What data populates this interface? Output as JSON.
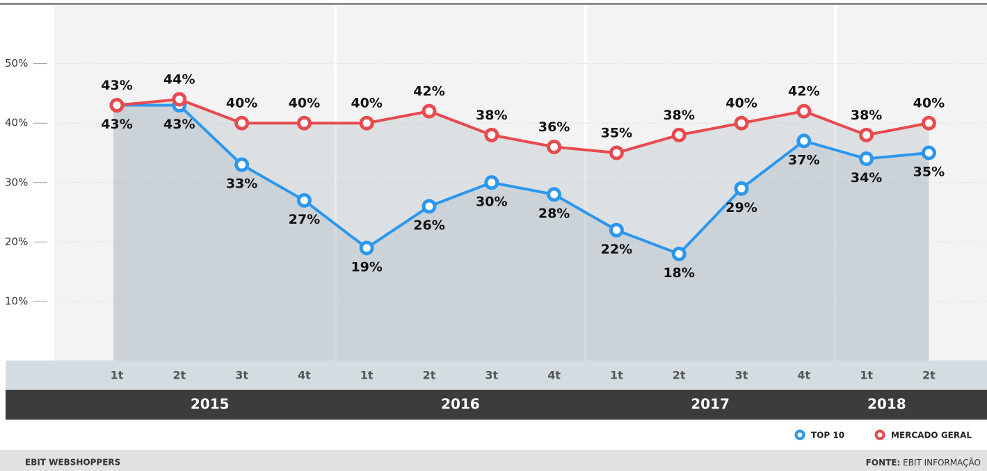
{
  "chart_data": {
    "type": "line",
    "groups": [
      {
        "name": "2015",
        "categories": [
          "1t",
          "2t",
          "3t",
          "4t"
        ]
      },
      {
        "name": "2016",
        "categories": [
          "1t",
          "2t",
          "3t",
          "4t"
        ]
      },
      {
        "name": "2017",
        "categories": [
          "1t",
          "2t",
          "3t",
          "4t"
        ]
      },
      {
        "name": "2018",
        "categories": [
          "1t",
          "2t"
        ]
      }
    ],
    "series": [
      {
        "name": "TOP 10",
        "color": "#2b97ef",
        "values": [
          43,
          43,
          33,
          27,
          19,
          26,
          30,
          28,
          22,
          18,
          29,
          37,
          34,
          35
        ],
        "value_labels": [
          "43%",
          "43%",
          "33%",
          "27%",
          "19%",
          "26%",
          "30%",
          "28%",
          "22%",
          "18%",
          "29%",
          "37%",
          "34%",
          "35%"
        ]
      },
      {
        "name": "MERCADO GERAL",
        "color": "#e84a4e",
        "values": [
          43,
          44,
          40,
          40,
          40,
          42,
          38,
          36,
          35,
          38,
          40,
          42,
          38,
          40
        ],
        "value_labels": [
          "43%",
          "44%",
          "40%",
          "40%",
          "40%",
          "42%",
          "38%",
          "36%",
          "35%",
          "38%",
          "40%",
          "42%",
          "38%",
          "40%"
        ]
      }
    ],
    "ylim": [
      0,
      60
    ],
    "yticks": [
      {
        "value": 10,
        "label": "10%"
      },
      {
        "value": 20,
        "label": "20%"
      },
      {
        "value": 30,
        "label": "30%"
      },
      {
        "value": 40,
        "label": "40%"
      },
      {
        "value": 50,
        "label": "50%"
      }
    ],
    "grid": true
  },
  "footer": {
    "left": "EBIT WEBSHOPPERS",
    "source_label": "FONTE:",
    "source": "EBIT INFORMAÇÃO"
  }
}
